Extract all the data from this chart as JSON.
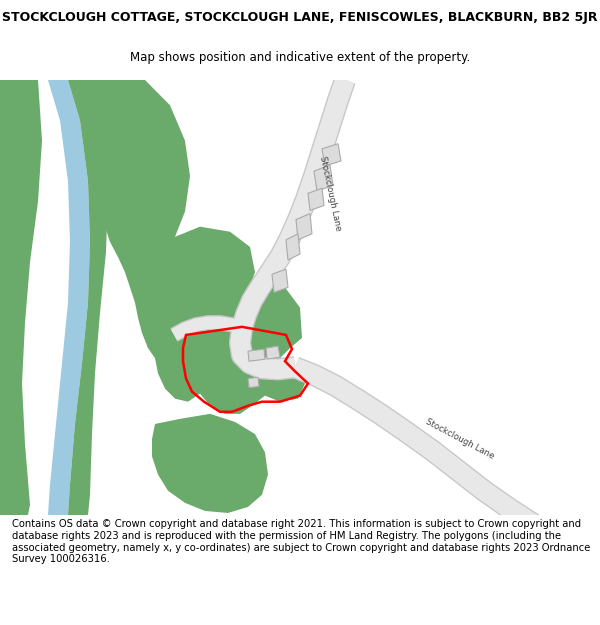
{
  "title": "STOCKCLOUGH COTTAGE, STOCKCLOUGH LANE, FENISCOWLES, BLACKBURN, BB2 5JR",
  "subtitle": "Map shows position and indicative extent of the property.",
  "footer": "Contains OS data © Crown copyright and database right 2021. This information is subject to Crown copyright and database rights 2023 and is reproduced with the permission of HM Land Registry. The polygons (including the associated geometry, namely x, y co-ordinates) are subject to Crown copyright and database rights 2023 Ordnance Survey 100026316.",
  "bg_color": "#ffffff",
  "map_bg": "#f0f0f0",
  "green_color": "#6aaa6a",
  "blue_color": "#9ecae1",
  "road_color": "#e8e8e8",
  "road_outline": "#c8c8c8",
  "building_color": "#dcdcdc",
  "building_outline": "#aaaaaa",
  "red_outline": "#ff0000",
  "title_fontsize": 9,
  "subtitle_fontsize": 8.5,
  "footer_fontsize": 7.2
}
